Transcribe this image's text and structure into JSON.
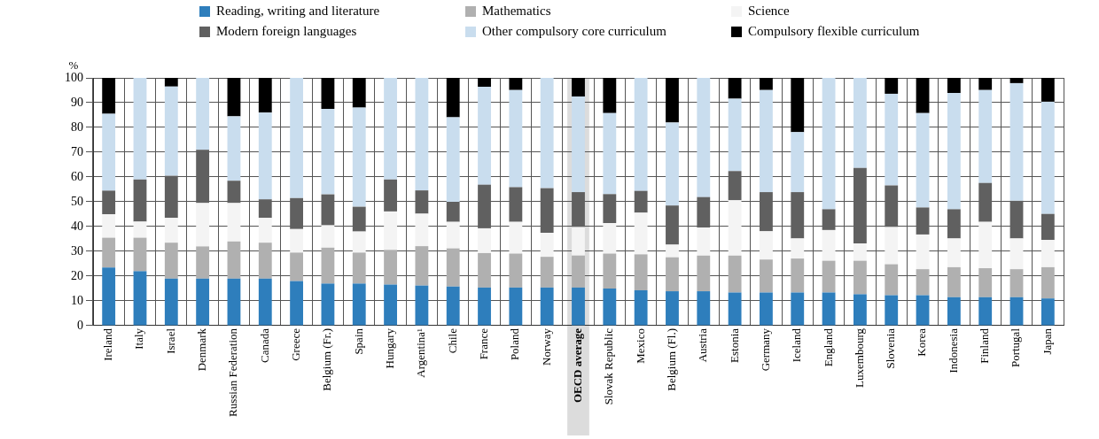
{
  "chart_data": {
    "type": "bar",
    "stacked": true,
    "ylabel": "%",
    "ylim": [
      0,
      100
    ],
    "yticks": [
      0,
      10,
      20,
      30,
      40,
      50,
      60,
      70,
      80,
      90,
      100
    ],
    "grid": true,
    "legend": "top",
    "categories": [
      "Ireland",
      "Italy",
      "Israel",
      "Denmark",
      "Russian Federation",
      "Canada",
      "Greece",
      "Belgium (Fr.)",
      "Spain",
      "Hungary",
      "Argentina¹",
      "Chile",
      "France",
      "Poland",
      "Norway",
      "OECD average",
      "Slovak Republic",
      "Mexico",
      "Belgium (Fl.)",
      "Austria",
      "Estonia",
      "Germany",
      "Iceland",
      "England",
      "Luxembourg",
      "Slovenia",
      "Korea",
      "Indonesia",
      "Finland",
      "Portugal",
      "Japan"
    ],
    "bands": [
      {
        "axis": "x",
        "from": "OECD average",
        "to": "OECD average",
        "color": "#dcdcdc"
      }
    ],
    "series": [
      {
        "name": "Reading, writing and literature",
        "color": "#2e7ebc",
        "values": [
          23.5,
          22,
          19,
          19,
          19,
          19,
          18,
          17,
          17,
          16.6,
          16.2,
          15.8,
          15.4,
          15.4,
          15.4,
          15.4,
          15,
          14.3,
          13.9,
          13.9,
          13.4,
          13.4,
          13.4,
          13.4,
          12.7,
          12.3,
          12.3,
          11.5,
          11.5,
          11.5,
          11
        ]
      },
      {
        "name": "Mathematics",
        "color": "#b0b0b0",
        "values": [
          12,
          13.5,
          14.5,
          13,
          15,
          14.5,
          11.5,
          14.5,
          12.5,
          14,
          15.9,
          15.4,
          13.9,
          13.7,
          12.4,
          12.9,
          14.1,
          14.5,
          13.7,
          14.4,
          14.9,
          13.3,
          13.7,
          12.8,
          13.5,
          12.5,
          10.5,
          12.1,
          11.7,
          11.3,
          12.6
        ]
      },
      {
        "name": "Science",
        "color": "#f4f4f4",
        "values": [
          9.5,
          6.5,
          10,
          17.5,
          15.5,
          10,
          9.5,
          9,
          8.5,
          15.5,
          13.1,
          10.7,
          10,
          12.8,
          9.7,
          11.5,
          12.3,
          16.8,
          5.1,
          11.3,
          22.3,
          11.4,
          8.1,
          12.4,
          7,
          15,
          14,
          11.6,
          18.7,
          12.4,
          11
        ]
      },
      {
        "name": "Modern foreign languages",
        "color": "#606060",
        "values": [
          9.5,
          17,
          17,
          21.5,
          9,
          7.5,
          12.5,
          12.5,
          10,
          12.9,
          9.4,
          8.1,
          17.6,
          14,
          18,
          14.1,
          11.7,
          8.8,
          15.8,
          12.3,
          11.8,
          15.8,
          18.7,
          8.4,
          30.5,
          16.8,
          10.9,
          11.8,
          15.7,
          15.2,
          10.5
        ]
      },
      {
        "name": "Other compulsory core curriculum",
        "color": "#c9ddee",
        "values": [
          31,
          41,
          36,
          29,
          26,
          35,
          48.5,
          34.5,
          40,
          41,
          45.4,
          34.1,
          39.5,
          39.2,
          44.5,
          38.6,
          32.7,
          45.6,
          33.5,
          48.1,
          29.2,
          41.2,
          24.2,
          53,
          36.3,
          37,
          38.1,
          46.9,
          37.5,
          47.5,
          45.3
        ]
      },
      {
        "name": "Compulsory flexible curriculum",
        "color": "#000000",
        "values": [
          14.5,
          0,
          3.5,
          0,
          15.5,
          14,
          0,
          12.5,
          12,
          0,
          0,
          15.9,
          3.6,
          4.9,
          0,
          7.5,
          14.2,
          0,
          18,
          0,
          8.4,
          4.9,
          21.9,
          0,
          0,
          6.4,
          14.2,
          6.1,
          4.9,
          2.1,
          9.6
        ]
      }
    ]
  }
}
